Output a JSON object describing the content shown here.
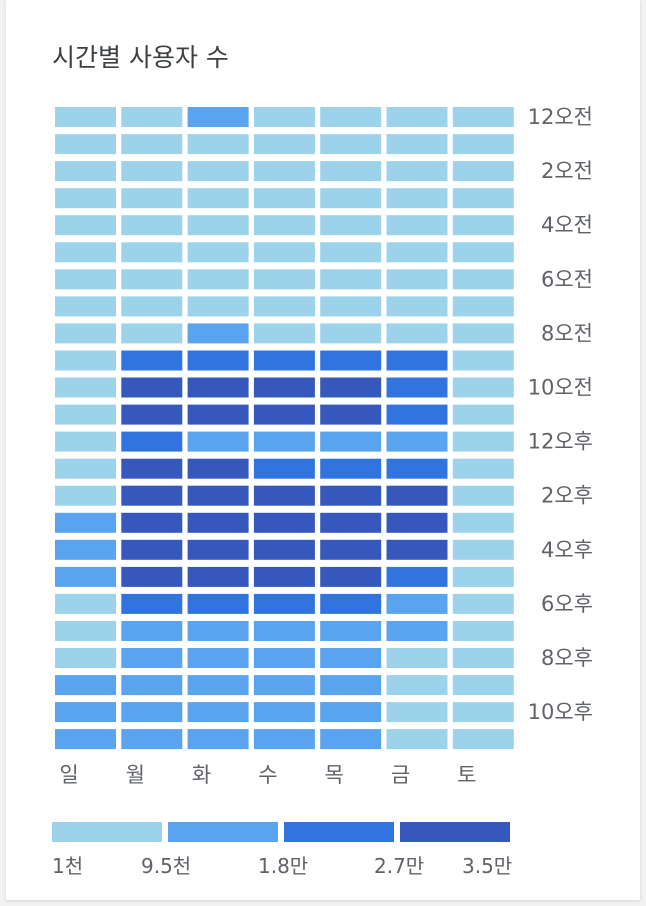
{
  "chart_data": {
    "type": "heatmap",
    "title": "시간별 사용자 수",
    "days": [
      "일",
      "월",
      "화",
      "수",
      "목",
      "금",
      "토"
    ],
    "hour_labels": [
      "12오전",
      "",
      "2오전",
      "",
      "4오전",
      "",
      "6오전",
      "",
      "8오전",
      "",
      "10오전",
      "",
      "12오후",
      "",
      "2오후",
      "",
      "4오후",
      "",
      "6오후",
      "",
      "8오후",
      "",
      "10오후",
      ""
    ],
    "levels": [
      [
        0,
        0,
        1,
        0,
        0,
        0,
        0
      ],
      [
        0,
        0,
        0,
        0,
        0,
        0,
        0
      ],
      [
        0,
        0,
        0,
        0,
        0,
        0,
        0
      ],
      [
        0,
        0,
        0,
        0,
        0,
        0,
        0
      ],
      [
        0,
        0,
        0,
        0,
        0,
        0,
        0
      ],
      [
        0,
        0,
        0,
        0,
        0,
        0,
        0
      ],
      [
        0,
        0,
        0,
        0,
        0,
        0,
        0
      ],
      [
        0,
        0,
        0,
        0,
        0,
        0,
        0
      ],
      [
        0,
        0,
        1,
        0,
        0,
        0,
        0
      ],
      [
        0,
        2,
        2,
        2,
        2,
        2,
        0
      ],
      [
        0,
        3,
        3,
        3,
        3,
        2,
        0
      ],
      [
        0,
        3,
        3,
        3,
        3,
        2,
        0
      ],
      [
        0,
        2,
        1,
        1,
        1,
        1,
        0
      ],
      [
        0,
        3,
        3,
        2,
        2,
        2,
        0
      ],
      [
        0,
        3,
        3,
        3,
        3,
        3,
        0
      ],
      [
        1,
        3,
        3,
        3,
        3,
        3,
        0
      ],
      [
        1,
        3,
        3,
        3,
        3,
        3,
        0
      ],
      [
        1,
        3,
        3,
        3,
        3,
        2,
        0
      ],
      [
        0,
        2,
        2,
        2,
        2,
        1,
        0
      ],
      [
        0,
        1,
        1,
        1,
        1,
        1,
        0
      ],
      [
        0,
        1,
        1,
        1,
        1,
        0,
        0
      ],
      [
        1,
        1,
        1,
        1,
        1,
        0,
        0
      ],
      [
        1,
        1,
        1,
        1,
        1,
        0,
        0
      ],
      [
        1,
        1,
        1,
        1,
        1,
        0,
        0
      ]
    ],
    "legend": {
      "colors": [
        "#9dd3ea",
        "#5aa3ef",
        "#3174e0",
        "#3658bd"
      ],
      "labels": [
        "1천",
        "9.5천",
        "1.8만",
        "2.7만",
        "3.5만"
      ]
    }
  }
}
